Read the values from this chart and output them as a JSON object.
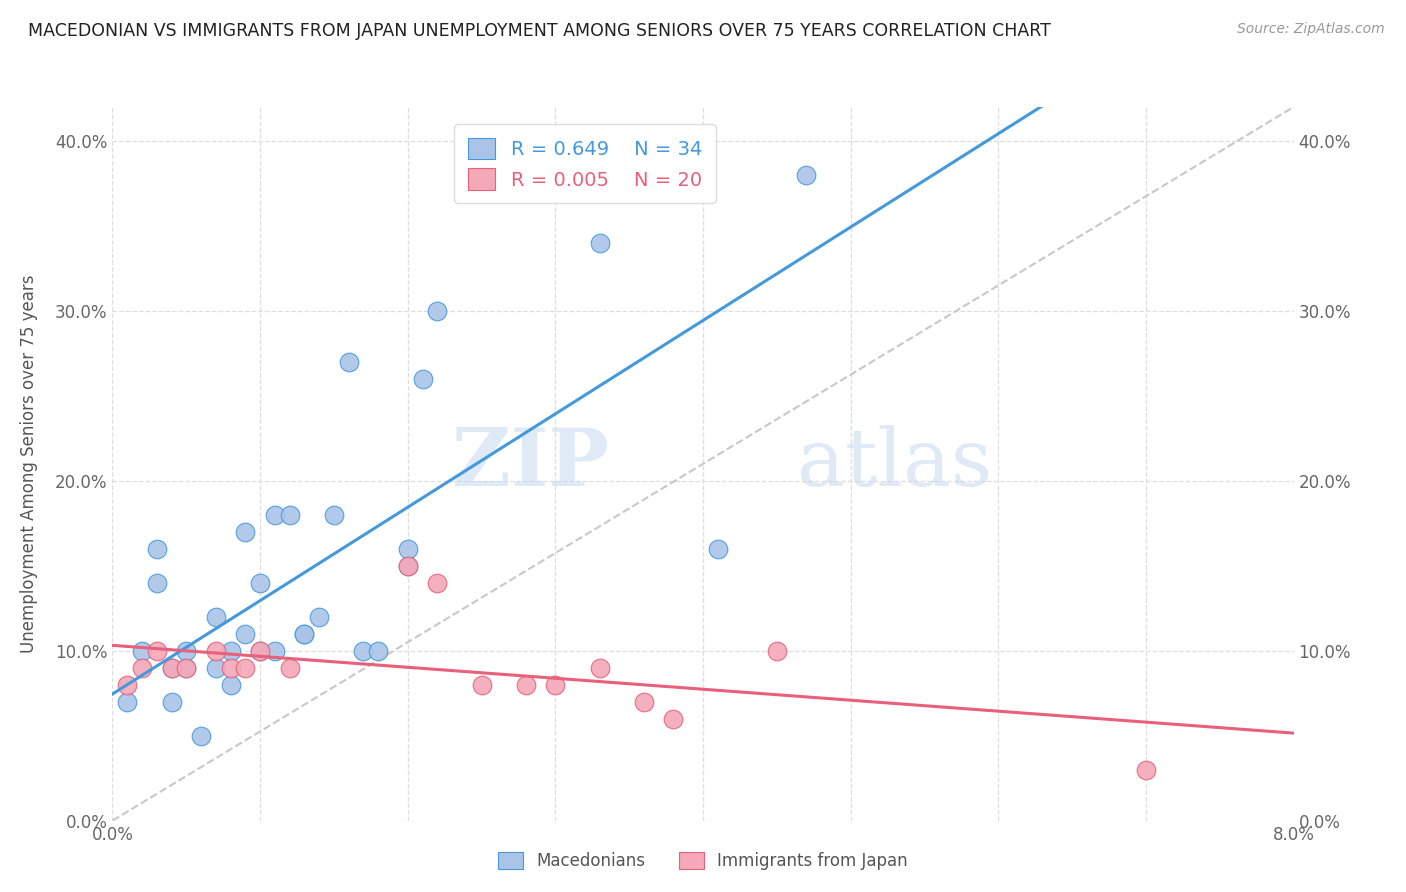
{
  "title": "MACEDONIAN VS IMMIGRANTS FROM JAPAN UNEMPLOYMENT AMONG SENIORS OVER 75 YEARS CORRELATION CHART",
  "source": "Source: ZipAtlas.com",
  "ylabel": "Unemployment Among Seniors over 75 years",
  "xlim": [
    0.0,
    0.08
  ],
  "ylim": [
    0.0,
    0.42
  ],
  "background_color": "#ffffff",
  "macedonian_color": "#aac4e8",
  "japan_color": "#f4a8b8",
  "macedonian_line_color": "#4499dd",
  "japan_line_color": "#e8607a",
  "diagonal_color": "#c8c8c8",
  "grid_color": "#dedede",
  "watermark_zip": "ZIP",
  "watermark_atlas": "atlas",
  "legend_R_mac": "0.649",
  "legend_N_mac": "34",
  "legend_R_jap": "0.005",
  "legend_N_jap": "20",
  "macedonian_x": [
    0.001,
    0.002,
    0.003,
    0.003,
    0.004,
    0.004,
    0.005,
    0.005,
    0.006,
    0.007,
    0.007,
    0.008,
    0.008,
    0.009,
    0.009,
    0.01,
    0.01,
    0.011,
    0.011,
    0.012,
    0.013,
    0.013,
    0.014,
    0.015,
    0.016,
    0.017,
    0.018,
    0.02,
    0.02,
    0.021,
    0.022,
    0.033,
    0.041,
    0.047
  ],
  "macedonian_y": [
    0.07,
    0.1,
    0.14,
    0.16,
    0.07,
    0.09,
    0.09,
    0.1,
    0.05,
    0.09,
    0.12,
    0.08,
    0.1,
    0.11,
    0.17,
    0.1,
    0.14,
    0.1,
    0.18,
    0.18,
    0.11,
    0.11,
    0.12,
    0.18,
    0.27,
    0.1,
    0.1,
    0.15,
    0.16,
    0.26,
    0.3,
    0.34,
    0.16,
    0.38
  ],
  "japan_x": [
    0.001,
    0.002,
    0.003,
    0.004,
    0.005,
    0.007,
    0.008,
    0.009,
    0.01,
    0.012,
    0.02,
    0.022,
    0.025,
    0.028,
    0.03,
    0.033,
    0.036,
    0.038,
    0.045,
    0.07
  ],
  "japan_y": [
    0.08,
    0.09,
    0.1,
    0.09,
    0.09,
    0.1,
    0.09,
    0.09,
    0.1,
    0.09,
    0.15,
    0.14,
    0.08,
    0.08,
    0.08,
    0.09,
    0.07,
    0.06,
    0.1,
    0.03
  ],
  "ytick_labels": [
    "0.0%",
    "10.0%",
    "20.0%",
    "30.0%",
    "40.0%"
  ],
  "ytick_values": [
    0.0,
    0.1,
    0.2,
    0.3,
    0.4
  ],
  "xtick_values": [
    0.0,
    0.01,
    0.02,
    0.03,
    0.04,
    0.05,
    0.06,
    0.07,
    0.08
  ],
  "xtick_labels": [
    "0.0%",
    "",
    "",
    "",
    "",
    "",
    "",
    "",
    "8.0%"
  ]
}
